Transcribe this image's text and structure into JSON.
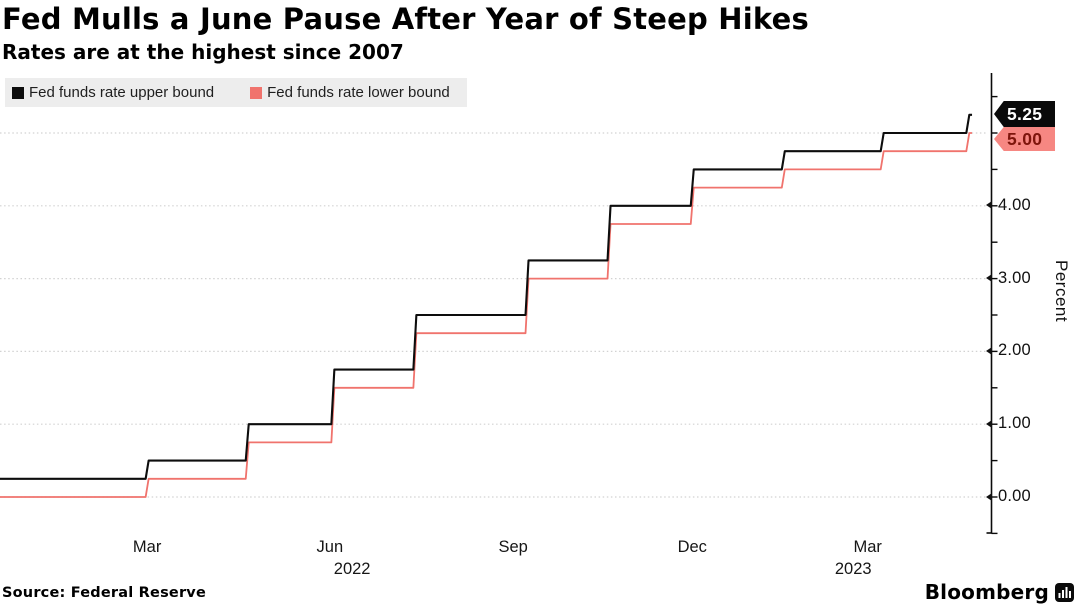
{
  "header": {
    "title": "Fed Mulls a June Pause After Year of Steep Hikes",
    "subtitle": "Rates are at the highest since 2007"
  },
  "chart_data": {
    "type": "line",
    "line_style": "step-after",
    "title": "Fed Mulls a June Pause After Year of Steep Hikes",
    "subtitle": "Rates are at the highest since 2007",
    "ylabel": "Percent",
    "ylim": [
      -0.55,
      5.8
    ],
    "grid": "horizontal dotted lines at each integer 0-5",
    "legend_position": "top-left",
    "colors": {
      "upper_line": "#0d0d0d",
      "lower_line": "#f0736d",
      "upper_badge_bg": "#0a0a0a",
      "upper_badge_text": "#ffffff",
      "lower_badge_bg": "#f68782",
      "lower_badge_text": "#7e150c",
      "legend_bg": "#ededed",
      "gridline": "#d2d2d2"
    },
    "x_axis": {
      "unit": "months since Jan 2022",
      "ticks": [
        {
          "label": "Mar",
          "m": 2.44
        },
        {
          "label": "Jun",
          "m": 5.47
        },
        {
          "label": "Sep",
          "m": 8.51
        },
        {
          "label": "Dec",
          "m": 11.48
        },
        {
          "label": "Mar",
          "m": 14.39
        }
      ],
      "year_labels": [
        {
          "label": "2022",
          "m": 5.84
        },
        {
          "label": "2023",
          "m": 14.15
        }
      ]
    },
    "y_axis": {
      "title": "Percent",
      "ticks": [
        {
          "label": "0.00",
          "value": 0
        },
        {
          "label": "1.00",
          "value": 1
        },
        {
          "label": "2.00",
          "value": 2
        },
        {
          "label": "3.00",
          "value": 3
        },
        {
          "label": "4.00",
          "value": 4
        }
      ],
      "minor_tick_step": 0.5
    },
    "series": [
      {
        "name": "Fed funds rate upper bound",
        "color": "#0d0d0d",
        "end_label": "5.25",
        "points": [
          {
            "m": 0.0,
            "v": 0.25
          },
          {
            "m": 2.44,
            "v": 0.5
          },
          {
            "m": 4.1,
            "v": 1.0
          },
          {
            "m": 5.52,
            "v": 1.75
          },
          {
            "m": 6.88,
            "v": 2.5
          },
          {
            "m": 8.74,
            "v": 3.25
          },
          {
            "m": 10.1,
            "v": 4.0
          },
          {
            "m": 11.48,
            "v": 4.5
          },
          {
            "m": 12.99,
            "v": 4.75
          },
          {
            "m": 14.63,
            "v": 5.0
          },
          {
            "m": 16.05,
            "v": 5.25
          }
        ],
        "end_m": 16.12
      },
      {
        "name": "Fed funds rate lower bound",
        "color": "#f0736d",
        "end_label": "5.00",
        "points": [
          {
            "m": 0.0,
            "v": 0.0
          },
          {
            "m": 2.44,
            "v": 0.25
          },
          {
            "m": 4.1,
            "v": 0.75
          },
          {
            "m": 5.52,
            "v": 1.5
          },
          {
            "m": 6.88,
            "v": 2.25
          },
          {
            "m": 8.74,
            "v": 3.0
          },
          {
            "m": 10.1,
            "v": 3.75
          },
          {
            "m": 11.48,
            "v": 4.25
          },
          {
            "m": 12.99,
            "v": 4.5
          },
          {
            "m": 14.63,
            "v": 4.75
          },
          {
            "m": 16.05,
            "v": 5.0
          }
        ],
        "end_m": 16.12
      }
    ]
  },
  "footer": {
    "source": "Source: Federal Reserve",
    "brand": "Bloomberg"
  }
}
